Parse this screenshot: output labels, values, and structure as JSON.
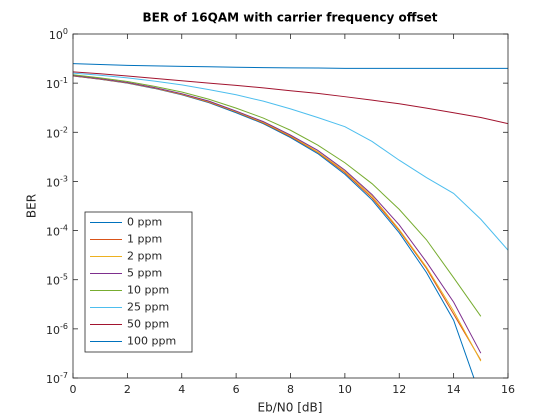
{
  "chart_data": {
    "type": "line",
    "title": "BER of 16QAM with carrier frequency offset",
    "xlabel": "Eb/N0 [dB]",
    "ylabel": "BER",
    "yscale": "log",
    "legend": "southwest",
    "grid": false,
    "x": [
      0,
      1,
      2,
      3,
      4,
      5,
      6,
      7,
      8,
      9,
      10,
      11,
      12,
      13,
      14,
      15,
      16
    ],
    "xlim": [
      0,
      16
    ],
    "xticks": [
      0,
      2,
      4,
      6,
      8,
      10,
      12,
      14,
      16
    ],
    "ylim": [
      1e-07,
      1
    ],
    "yticks": [
      {
        "value": 1e-07,
        "label": "10^-7"
      },
      {
        "value": 1e-06,
        "label": "10^-6"
      },
      {
        "value": 1e-05,
        "label": "10^-5"
      },
      {
        "value": 0.0001,
        "label": "10^-4"
      },
      {
        "value": 0.001,
        "label": "10^-3"
      },
      {
        "value": 0.01,
        "label": "10^-2"
      },
      {
        "value": 0.1,
        "label": "10^-1"
      },
      {
        "value": 1,
        "label": "10^0"
      }
    ],
    "series": [
      {
        "name": "0 ppm",
        "color": "#0072BD",
        "values": [
          0.14,
          0.12,
          0.1,
          0.078,
          0.058,
          0.04,
          0.025,
          0.015,
          0.0078,
          0.0037,
          0.0014,
          0.00042,
          9e-05,
          1.4e-05,
          1.5e-06,
          4e-08,
          null
        ]
      },
      {
        "name": "1 ppm",
        "color": "#D95319",
        "values": [
          0.141,
          0.121,
          0.101,
          0.079,
          0.059,
          0.041,
          0.026,
          0.0155,
          0.0082,
          0.0039,
          0.0015,
          0.00046,
          0.0001,
          1.7e-05,
          2e-06,
          2.3e-07,
          null
        ]
      },
      {
        "name": "2 ppm",
        "color": "#EDB120",
        "values": [
          0.142,
          0.122,
          0.102,
          0.08,
          0.06,
          0.042,
          0.0265,
          0.016,
          0.0085,
          0.004,
          0.0016,
          0.0005,
          0.000105,
          1.8e-05,
          2.3e-06,
          2.2e-07,
          null
        ]
      },
      {
        "name": "5 ppm",
        "color": "#7E2F8E",
        "values": [
          0.143,
          0.123,
          0.103,
          0.081,
          0.061,
          0.043,
          0.027,
          0.0165,
          0.0088,
          0.0043,
          0.0017,
          0.00054,
          0.00013,
          2.3e-05,
          3.5e-06,
          3.2e-07,
          null
        ]
      },
      {
        "name": "10 ppm",
        "color": "#77AC30",
        "values": [
          0.148,
          0.128,
          0.108,
          0.086,
          0.066,
          0.047,
          0.031,
          0.0195,
          0.011,
          0.0055,
          0.0024,
          0.0009,
          0.00027,
          6.5e-05,
          1.1e-05,
          1.8e-06,
          null
        ]
      },
      {
        "name": "25 ppm",
        "color": "#4DBEEE",
        "values": [
          0.16,
          0.145,
          0.128,
          0.11,
          0.092,
          0.074,
          0.058,
          0.043,
          0.03,
          0.02,
          0.013,
          0.0065,
          0.0027,
          0.0012,
          0.00057,
          0.00017,
          4e-05
        ]
      },
      {
        "name": "50 ppm",
        "color": "#A2142F",
        "values": [
          0.17,
          0.155,
          0.14,
          0.125,
          0.112,
          0.1,
          0.09,
          0.08,
          0.07,
          0.062,
          0.053,
          0.045,
          0.038,
          0.031,
          0.025,
          0.02,
          0.015
        ]
      },
      {
        "name": "100 ppm",
        "color": "#0072BD",
        "values": [
          0.25,
          0.24,
          0.23,
          0.225,
          0.22,
          0.215,
          0.21,
          0.207,
          0.205,
          0.203,
          0.2,
          0.2,
          0.2,
          0.2,
          0.2,
          0.2,
          0.2
        ]
      }
    ]
  }
}
